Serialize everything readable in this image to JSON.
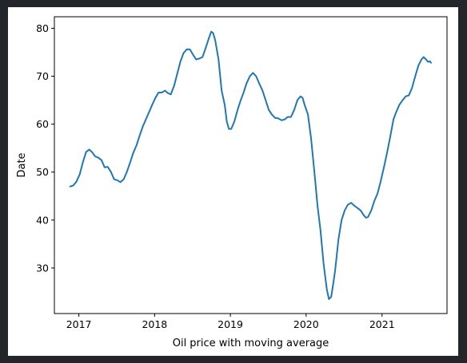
{
  "chart_data": {
    "type": "line",
    "xlabel": "Oil price with moving average",
    "ylabel": "Date",
    "x_ticks": [
      "2017",
      "2018",
      "2019",
      "2020",
      "2021"
    ],
    "y_ticks": [
      30,
      40,
      50,
      60,
      70,
      80
    ],
    "xlim": [
      "2016-09-05",
      "2021-11-10"
    ],
    "ylim": [
      20.5,
      82.4
    ],
    "grid": false,
    "series": [
      {
        "color": "#1f77b4",
        "points": [
          [
            "2016-11-20",
            47.0
          ],
          [
            "2016-12-05",
            47.2
          ],
          [
            "2016-12-20",
            48.0
          ],
          [
            "2017-01-05",
            49.5
          ],
          [
            "2017-01-20",
            52.0
          ],
          [
            "2017-02-05",
            54.2
          ],
          [
            "2017-02-20",
            54.7
          ],
          [
            "2017-03-05",
            54.2
          ],
          [
            "2017-03-20",
            53.3
          ],
          [
            "2017-04-05",
            53.0
          ],
          [
            "2017-04-20",
            52.5
          ],
          [
            "2017-05-05",
            51.0
          ],
          [
            "2017-05-20",
            51.1
          ],
          [
            "2017-06-05",
            50.0
          ],
          [
            "2017-06-20",
            48.5
          ],
          [
            "2017-07-05",
            48.3
          ],
          [
            "2017-07-20",
            47.9
          ],
          [
            "2017-08-05",
            48.5
          ],
          [
            "2017-08-20",
            50.0
          ],
          [
            "2017-09-05",
            52.0
          ],
          [
            "2017-09-20",
            54.0
          ],
          [
            "2017-10-05",
            55.5
          ],
          [
            "2017-10-20",
            57.5
          ],
          [
            "2017-11-05",
            59.5
          ],
          [
            "2017-11-20",
            61.0
          ],
          [
            "2017-12-05",
            62.5
          ],
          [
            "2017-12-20",
            64.0
          ],
          [
            "2018-01-05",
            65.5
          ],
          [
            "2018-01-20",
            66.6
          ],
          [
            "2018-02-05",
            66.6
          ],
          [
            "2018-02-20",
            67.0
          ],
          [
            "2018-03-05",
            66.5
          ],
          [
            "2018-03-20",
            66.2
          ],
          [
            "2018-04-05",
            68.0
          ],
          [
            "2018-04-20",
            70.5
          ],
          [
            "2018-05-05",
            73.0
          ],
          [
            "2018-05-20",
            74.8
          ],
          [
            "2018-06-05",
            75.6
          ],
          [
            "2018-06-20",
            75.6
          ],
          [
            "2018-07-05",
            74.5
          ],
          [
            "2018-07-20",
            73.5
          ],
          [
            "2018-08-05",
            73.7
          ],
          [
            "2018-08-20",
            74.0
          ],
          [
            "2018-09-05",
            76.0
          ],
          [
            "2018-09-20",
            78.0
          ],
          [
            "2018-10-01",
            79.3
          ],
          [
            "2018-10-10",
            79.0
          ],
          [
            "2018-10-20",
            77.5
          ],
          [
            "2018-11-05",
            73.5
          ],
          [
            "2018-11-20",
            67.0
          ],
          [
            "2018-12-05",
            64.0
          ],
          [
            "2018-12-15",
            60.5
          ],
          [
            "2018-12-25",
            59.0
          ],
          [
            "2019-01-05",
            59.0
          ],
          [
            "2019-01-20",
            60.5
          ],
          [
            "2019-02-05",
            63.0
          ],
          [
            "2019-02-20",
            65.0
          ],
          [
            "2019-03-05",
            66.5
          ],
          [
            "2019-03-20",
            68.5
          ],
          [
            "2019-04-05",
            70.0
          ],
          [
            "2019-04-20",
            70.7
          ],
          [
            "2019-05-05",
            70.0
          ],
          [
            "2019-05-20",
            68.5
          ],
          [
            "2019-06-05",
            67.0
          ],
          [
            "2019-06-20",
            65.0
          ],
          [
            "2019-07-05",
            63.0
          ],
          [
            "2019-07-20",
            62.0
          ],
          [
            "2019-08-05",
            61.3
          ],
          [
            "2019-08-20",
            61.2
          ],
          [
            "2019-09-05",
            60.8
          ],
          [
            "2019-09-20",
            61.0
          ],
          [
            "2019-10-05",
            61.5
          ],
          [
            "2019-10-20",
            61.5
          ],
          [
            "2019-11-05",
            63.0
          ],
          [
            "2019-11-20",
            65.0
          ],
          [
            "2019-12-05",
            65.8
          ],
          [
            "2019-12-15",
            65.5
          ],
          [
            "2019-12-25",
            64.0
          ],
          [
            "2020-01-10",
            62.0
          ],
          [
            "2020-01-25",
            57.0
          ],
          [
            "2020-02-10",
            50.0
          ],
          [
            "2020-02-25",
            43.0
          ],
          [
            "2020-03-10",
            38.0
          ],
          [
            "2020-03-25",
            31.0
          ],
          [
            "2020-04-10",
            25.5
          ],
          [
            "2020-04-20",
            23.5
          ],
          [
            "2020-05-01",
            24.0
          ],
          [
            "2020-05-10",
            26.5
          ],
          [
            "2020-05-20",
            29.5
          ],
          [
            "2020-06-05",
            36.0
          ],
          [
            "2020-06-20",
            40.0
          ],
          [
            "2020-07-05",
            42.0
          ],
          [
            "2020-07-20",
            43.2
          ],
          [
            "2020-08-05",
            43.6
          ],
          [
            "2020-08-20",
            43.0
          ],
          [
            "2020-09-05",
            42.5
          ],
          [
            "2020-09-20",
            42.0
          ],
          [
            "2020-10-05",
            41.0
          ],
          [
            "2020-10-15",
            40.5
          ],
          [
            "2020-10-25",
            40.6
          ],
          [
            "2020-11-10",
            42.0
          ],
          [
            "2020-11-25",
            44.0
          ],
          [
            "2020-12-10",
            45.5
          ],
          [
            "2020-12-25",
            48.0
          ],
          [
            "2021-01-10",
            51.0
          ],
          [
            "2021-01-25",
            54.0
          ],
          [
            "2021-02-10",
            57.5
          ],
          [
            "2021-02-25",
            61.0
          ],
          [
            "2021-03-10",
            62.5
          ],
          [
            "2021-03-25",
            64.0
          ],
          [
            "2021-04-10",
            65.0
          ],
          [
            "2021-04-25",
            65.8
          ],
          [
            "2021-05-10",
            66.0
          ],
          [
            "2021-05-25",
            67.5
          ],
          [
            "2021-06-10",
            70.0
          ],
          [
            "2021-06-25",
            72.2
          ],
          [
            "2021-07-10",
            73.5
          ],
          [
            "2021-07-20",
            74.0
          ],
          [
            "2021-08-01",
            73.5
          ],
          [
            "2021-08-10",
            73.0
          ],
          [
            "2021-08-20",
            73.1
          ],
          [
            "2021-08-25",
            72.8
          ]
        ]
      }
    ]
  }
}
